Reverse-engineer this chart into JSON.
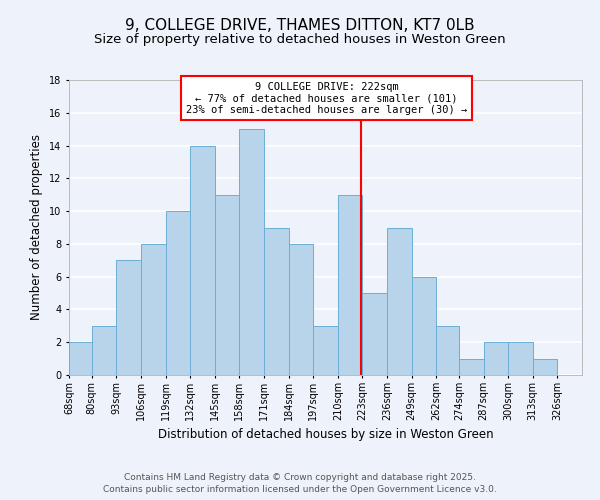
{
  "title": "9, COLLEGE DRIVE, THAMES DITTON, KT7 0LB",
  "subtitle": "Size of property relative to detached houses in Weston Green",
  "xlabel": "Distribution of detached houses by size in Weston Green",
  "ylabel": "Number of detached properties",
  "bin_labels": [
    "68sqm",
    "80sqm",
    "93sqm",
    "106sqm",
    "119sqm",
    "132sqm",
    "145sqm",
    "158sqm",
    "171sqm",
    "184sqm",
    "197sqm",
    "210sqm",
    "223sqm",
    "236sqm",
    "249sqm",
    "262sqm",
    "274sqm",
    "287sqm",
    "300sqm",
    "313sqm",
    "326sqm"
  ],
  "bin_edges": [
    68,
    80,
    93,
    106,
    119,
    132,
    145,
    158,
    171,
    184,
    197,
    210,
    223,
    236,
    249,
    262,
    274,
    287,
    300,
    313,
    326
  ],
  "bar_heights": [
    2,
    3,
    7,
    8,
    10,
    14,
    11,
    15,
    9,
    8,
    3,
    11,
    5,
    9,
    6,
    3,
    1,
    2,
    2,
    1,
    0
  ],
  "bar_color": "#b8d4ea",
  "bar_edgecolor": "#6baed6",
  "vline_x": 222,
  "vline_color": "red",
  "annotation_title": "9 COLLEGE DRIVE: 222sqm",
  "annotation_line1": "← 77% of detached houses are smaller (101)",
  "annotation_line2": "23% of semi-detached houses are larger (30) →",
  "annotation_box_edgecolor": "red",
  "ylim": [
    0,
    18
  ],
  "yticks": [
    0,
    2,
    4,
    6,
    8,
    10,
    12,
    14,
    16,
    18
  ],
  "footer_line1": "Contains HM Land Registry data © Crown copyright and database right 2025.",
  "footer_line2": "Contains public sector information licensed under the Open Government Licence v3.0.",
  "background_color": "#eef2fa",
  "grid_color": "white",
  "title_fontsize": 11,
  "subtitle_fontsize": 9.5,
  "axis_label_fontsize": 8.5,
  "tick_fontsize": 7,
  "footer_fontsize": 6.5
}
